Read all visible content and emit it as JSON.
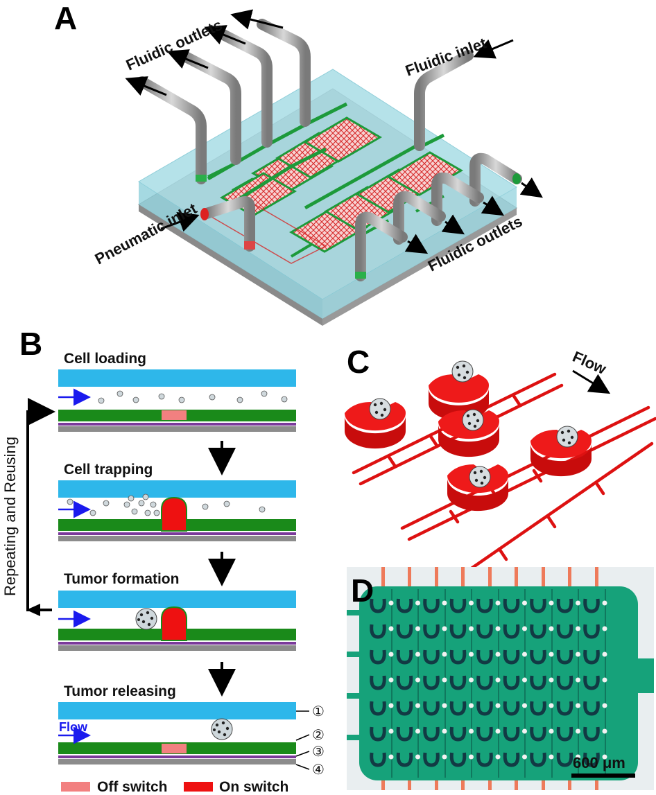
{
  "panels": {
    "a": "A",
    "b": "B",
    "c": "C",
    "d": "D"
  },
  "panel_a": {
    "fluidic_outlets_top": "Fluidic outlets",
    "fluidic_inlet": "Fluidic inlet",
    "pneumatic_inlet": "Pneumatic inlet",
    "fluidic_outlets_right": "Fluidic outlets"
  },
  "panel_b": {
    "steps": [
      "Cell loading",
      "Cell trapping",
      "Tumor formation",
      "Tumor releasing"
    ],
    "side_label": "Repeating and Reusing",
    "flow_label": "Flow",
    "layer_numbers": [
      "①",
      "②",
      "③",
      "④"
    ],
    "legend": {
      "off": "Off switch",
      "on": "On switch"
    },
    "colors": {
      "top_layer": "#2eb7ea",
      "membrane": "#1a8a1a",
      "valve_off": "#f28080",
      "valve_on": "#ee1111",
      "purple": "#7a3a9a",
      "base": "#8c8c8c"
    }
  },
  "panel_c": {
    "flow_label": "Flow"
  },
  "panel_d": {
    "scale_bar": "600 μm"
  }
}
